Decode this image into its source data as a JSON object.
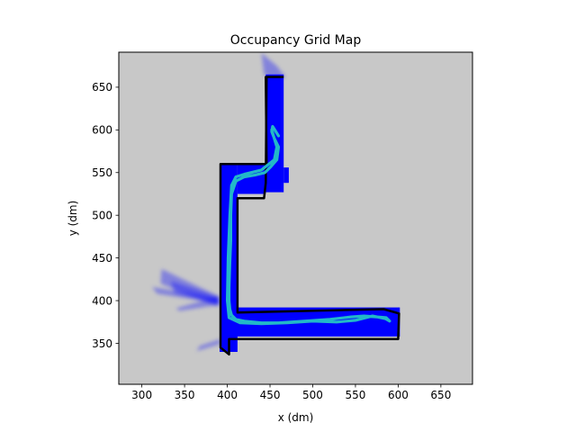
{
  "chart_data": {
    "type": "heatmap",
    "title": "Occupancy Grid Map",
    "xlabel": "x (dm)",
    "ylabel": "y (dm)",
    "xlim": [
      273,
      687
    ],
    "ylim": [
      302,
      691
    ],
    "xticks": [
      300,
      350,
      400,
      450,
      500,
      550,
      600,
      650
    ],
    "yticks": [
      350,
      400,
      450,
      500,
      550,
      600,
      650
    ],
    "grid": false,
    "colors": {
      "unknown": "#c8c8c8",
      "free": "#0000ff",
      "occupied": "#000000",
      "path": "#22b8c8"
    },
    "regions": {
      "free": [
        {
          "x0": 391,
          "x1": 412,
          "y0": 340,
          "y1": 560
        },
        {
          "x0": 391,
          "x1": 602,
          "y0": 358,
          "y1": 392
        },
        {
          "x0": 412,
          "x1": 445,
          "y0": 525,
          "y1": 560
        },
        {
          "x0": 445,
          "x1": 466,
          "y0": 527,
          "y1": 665
        },
        {
          "x0": 466,
          "x1": 472,
          "y0": 538,
          "y1": 556
        }
      ],
      "walls": [
        [
          [
            392,
            555
          ],
          [
            392,
            345
          ],
          [
            402,
            337
          ],
          [
            402,
            355
          ],
          [
            600,
            355
          ],
          [
            601,
            385
          ],
          [
            583,
            390
          ],
          [
            412,
            386
          ],
          [
            412,
            520
          ],
          [
            443,
            520
          ],
          [
            445,
            538
          ],
          [
            446,
            662
          ]
        ],
        [
          [
            392,
            555
          ],
          [
            392,
            560
          ],
          [
            446,
            560
          ],
          [
            445,
            662
          ],
          [
            466,
            662
          ]
        ]
      ],
      "rays": [
        {
          "x": [
            323,
            390,
            389,
            322
          ],
          "y": [
            437,
            405,
            393,
            420
          ]
        },
        {
          "x": [
            340,
            390,
            390,
            344
          ],
          "y": [
            391,
            405,
            395,
            388
          ]
        },
        {
          "x": [
            334,
            390,
            392,
            338
          ],
          "y": [
            423,
            404,
            395,
            409
          ]
        },
        {
          "x": [
            455,
            468,
            458,
            440,
            443
          ],
          "y": [
            659,
            662,
            675,
            690,
            665
          ]
        },
        {
          "x": [
            364,
            391,
            392,
            368
          ],
          "y": [
            341,
            349,
            355,
            347
          ]
        },
        {
          "x": [
            312,
            390,
            389,
            318
          ],
          "y": [
            416,
            403,
            397,
            408
          ]
        }
      ]
    },
    "series": [
      {
        "x": [
          460,
          453,
          452,
          455,
          460,
          458,
          451,
          444,
          432,
          420,
          410,
          405,
          404,
          404,
          403,
          402,
          402,
          403,
          405,
          410,
          420,
          440,
          460,
          490,
          520,
          545,
          560,
          575,
          586,
          590,
          585,
          570,
          550,
          528,
          500,
          470,
          440,
          415,
          402,
          400,
          401,
          403,
          405,
          410,
          420,
          440,
          455,
          458,
          452
        ],
        "y": [
          593,
          604,
          598,
          590,
          580,
          565,
          557,
          550,
          547,
          545,
          540,
          525,
          500,
          470,
          445,
          415,
          400,
          390,
          383,
          378,
          376,
          374,
          374,
          376,
          378,
          381,
          382,
          381,
          380,
          376,
          379,
          382,
          377,
          375,
          376,
          374,
          373,
          374,
          380,
          400,
          450,
          500,
          535,
          545,
          548,
          553,
          565,
          580,
          600
        ]
      }
    ]
  }
}
